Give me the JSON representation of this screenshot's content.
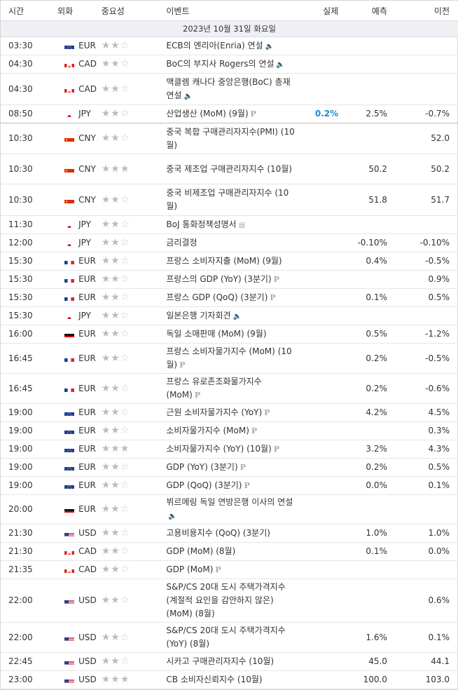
{
  "header": {
    "time": "시간",
    "currency": "외화",
    "importance": "중요성",
    "event": "이벤트",
    "actual": "실제",
    "forecast": "예측",
    "previous": "이전"
  },
  "date_label": "2023년 10월 31일 화요일",
  "rows": [
    {
      "time": "03:30",
      "flag": "eu",
      "cur": "EUR",
      "stars": 2,
      "event": "ECB의 엔리아(Enria) 연설",
      "icon": "speaker-icon",
      "actual": "",
      "forecast": "",
      "previous": "",
      "h": 26
    },
    {
      "time": "04:30",
      "flag": "ca",
      "cur": "CAD",
      "stars": 2,
      "event": "BoC의 부지사 Rogers의 연설",
      "icon": "speaker-icon",
      "actual": "",
      "forecast": "",
      "previous": "",
      "h": 26
    },
    {
      "time": "04:30",
      "flag": "ca",
      "cur": "CAD",
      "stars": 2,
      "event": "맥클렘 캐나다 중앙은행(BoC) 총재 연설",
      "icon": "speaker-icon",
      "actual": "",
      "forecast": "",
      "previous": "",
      "h": 45
    },
    {
      "time": "08:50",
      "flag": "jp",
      "cur": "JPY",
      "stars": 2,
      "event": "산업생산 (MoM) (9월)",
      "icon": "p-icon",
      "actual": "0.2%",
      "forecast": "2.5%",
      "previous": "-0.7%",
      "h": 26,
      "sep": true
    },
    {
      "time": "10:30",
      "flag": "cn",
      "cur": "CNY",
      "stars": 2,
      "event": "중국 복합 구매관리자지수(PMI) (10월)",
      "icon": "",
      "actual": "",
      "forecast": "",
      "previous": "52.0",
      "h": 44
    },
    {
      "time": "10:30",
      "flag": "cn",
      "cur": "CNY",
      "stars": 3,
      "event": "중국 제조업 구매관리자지수 (10월)",
      "icon": "",
      "actual": "",
      "forecast": "50.2",
      "previous": "50.2",
      "h": 43
    },
    {
      "time": "10:30",
      "flag": "cn",
      "cur": "CNY",
      "stars": 2,
      "event": "중국 비제조업 구매관리자지수 (10월)",
      "icon": "",
      "actual": "",
      "forecast": "51.8",
      "previous": "51.7",
      "h": 45
    },
    {
      "time": "11:30",
      "flag": "jp",
      "cur": "JPY",
      "stars": 2,
      "event": "BoJ 통화정책성명서",
      "icon": "doc-icon",
      "actual": "",
      "forecast": "",
      "previous": "",
      "h": 26
    },
    {
      "time": "12:00",
      "flag": "jp",
      "cur": "JPY",
      "stars": 2,
      "event": "금리결정",
      "icon": "",
      "actual": "",
      "forecast": "-0.10%",
      "previous": "-0.10%",
      "h": 26
    },
    {
      "time": "15:30",
      "flag": "fr",
      "cur": "EUR",
      "stars": 2,
      "event": "프랑스 소비자지출 (MoM) (9월)",
      "icon": "",
      "actual": "",
      "forecast": "0.4%",
      "previous": "-0.5%",
      "h": 26
    },
    {
      "time": "15:30",
      "flag": "fr",
      "cur": "EUR",
      "stars": 2,
      "event": "프랑스의 GDP (YoY) (3분기)",
      "icon": "p-icon",
      "actual": "",
      "forecast": "",
      "previous": "0.9%",
      "h": 26
    },
    {
      "time": "15:30",
      "flag": "fr",
      "cur": "EUR",
      "stars": 2,
      "event": "프랑스 GDP (QoQ) (3분기)",
      "icon": "p-icon",
      "actual": "",
      "forecast": "0.1%",
      "previous": "0.5%",
      "h": 26
    },
    {
      "time": "15:30",
      "flag": "jp",
      "cur": "JPY",
      "stars": 2,
      "event": "일본은행 기자회견",
      "icon": "speaker-icon",
      "actual": "",
      "forecast": "",
      "previous": "",
      "h": 26
    },
    {
      "time": "16:00",
      "flag": "de",
      "cur": "EUR",
      "stars": 2,
      "event": "독일 소매판매 (MoM) (9월)",
      "icon": "",
      "actual": "",
      "forecast": "0.5%",
      "previous": "-1.2%",
      "h": 26
    },
    {
      "time": "16:45",
      "flag": "fr",
      "cur": "EUR",
      "stars": 2,
      "event": "프랑스 소비자물가지수 (MoM) (10월)",
      "icon": "p-icon",
      "actual": "",
      "forecast": "0.2%",
      "previous": "-0.5%",
      "h": 43
    },
    {
      "time": "16:45",
      "flag": "fr",
      "cur": "EUR",
      "stars": 2,
      "event": "프랑스 유로존조화물가지수 (MoM)",
      "icon": "p-icon",
      "actual": "",
      "forecast": "0.2%",
      "previous": "-0.6%",
      "h": 43
    },
    {
      "time": "19:00",
      "flag": "eu",
      "cur": "EUR",
      "stars": 2,
      "event": "근원 소비자물가지수 (YoY)",
      "icon": "p-icon",
      "actual": "",
      "forecast": "4.2%",
      "previous": "4.5%",
      "h": 26
    },
    {
      "time": "19:00",
      "flag": "eu",
      "cur": "EUR",
      "stars": 2,
      "event": "소비자물가지수 (MoM)",
      "icon": "p-icon",
      "actual": "",
      "forecast": "",
      "previous": "0.3%",
      "h": 26
    },
    {
      "time": "19:00",
      "flag": "eu",
      "cur": "EUR",
      "stars": 3,
      "event": "소비자물가지수 (YoY) (10월)",
      "icon": "p-icon",
      "actual": "",
      "forecast": "3.2%",
      "previous": "4.3%",
      "h": 26
    },
    {
      "time": "19:00",
      "flag": "eu",
      "cur": "EUR",
      "stars": 2,
      "event": "GDP (YoY) (3분기)",
      "icon": "p-icon",
      "actual": "",
      "forecast": "0.2%",
      "previous": "0.5%",
      "h": 26
    },
    {
      "time": "19:00",
      "flag": "eu",
      "cur": "EUR",
      "stars": 2,
      "event": "GDP (QoQ) (3분기)",
      "icon": "p-icon",
      "actual": "",
      "forecast": "0.0%",
      "previous": "0.1%",
      "h": 26
    },
    {
      "time": "20:00",
      "flag": "de",
      "cur": "EUR",
      "stars": 2,
      "event": "뷔르메링 독일 연방은행 이사의 연설",
      "icon": "speaker-icon",
      "actual": "",
      "forecast": "",
      "previous": "",
      "h": 42
    },
    {
      "time": "21:30",
      "flag": "us",
      "cur": "USD",
      "stars": 2,
      "event": "고용비용지수 (QoQ) (3분기)",
      "icon": "",
      "actual": "",
      "forecast": "1.0%",
      "previous": "1.0%",
      "h": 26
    },
    {
      "time": "21:30",
      "flag": "ca",
      "cur": "CAD",
      "stars": 2,
      "event": "GDP (MoM) (8월)",
      "icon": "",
      "actual": "",
      "forecast": "0.1%",
      "previous": "0.0%",
      "h": 26
    },
    {
      "time": "21:35",
      "flag": "ca",
      "cur": "CAD",
      "stars": 2,
      "event": "GDP (MoM)",
      "icon": "p-icon",
      "actual": "",
      "forecast": "",
      "previous": "",
      "h": 26
    },
    {
      "time": "22:00",
      "flag": "us",
      "cur": "USD",
      "stars": 2,
      "event": "S&P/CS 20대 도시 주택가격지수 (계절적 요인을 감안하지 않은) (MoM) (8월)",
      "icon": "",
      "actual": "",
      "forecast": "",
      "previous": "0.6%",
      "h": 62
    },
    {
      "time": "22:00",
      "flag": "us",
      "cur": "USD",
      "stars": 2,
      "event": "S&P/CS 20대 도시 주택가격지수 (YoY) (8월)",
      "icon": "",
      "actual": "",
      "forecast": "1.6%",
      "previous": "0.1%",
      "h": 43
    },
    {
      "time": "22:45",
      "flag": "us",
      "cur": "USD",
      "stars": 2,
      "event": "시카고 구매관리자지수 (10월)",
      "icon": "",
      "actual": "",
      "forecast": "45.0",
      "previous": "44.1",
      "h": 26
    },
    {
      "time": "23:00",
      "flag": "us",
      "cur": "USD",
      "stars": 3,
      "event": "CB 소비자신뢰지수 (10월)",
      "icon": "",
      "actual": "",
      "forecast": "100.0",
      "previous": "103.0",
      "h": 26
    }
  ],
  "colors": {
    "actual_highlight": "#1e88d6",
    "star_on": "#b0b0b0",
    "star_off": "#cfcfcf",
    "date_bg": "#eef0f4"
  }
}
